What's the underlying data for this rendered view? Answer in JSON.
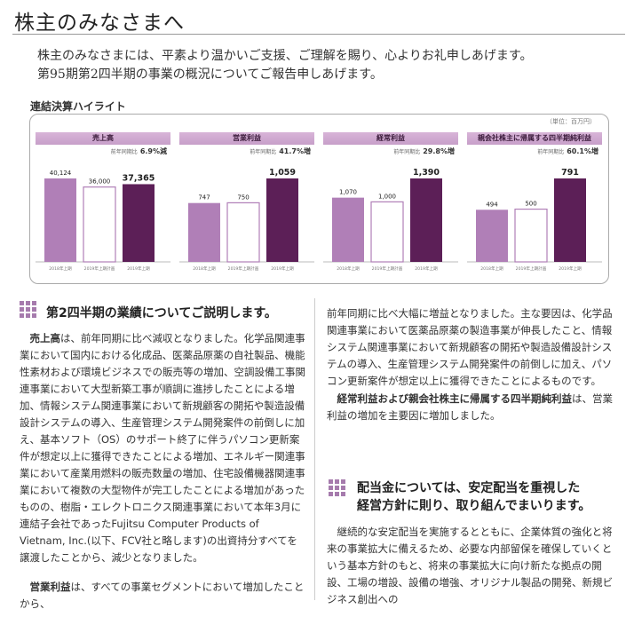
{
  "page_title": "株主のみなさまへ",
  "greeting": [
    "株主のみなさまには、平素より温かいご支援、ご理解を賜り、心よりお礼申しあげます。",
    "第95期第2四半期の事業の概況についてご報告申しあげます。"
  ],
  "highlight_label": "連結決算ハイライト",
  "unit_label": "（単位：百万円）",
  "chart_data": [
    {
      "type": "bar",
      "title": "売上高",
      "yoy_prefix": "前年同期比",
      "yoy": "6.9%減",
      "categories": [
        "2018年上期",
        "2019年上期計画",
        "2019年上期"
      ],
      "values": [
        40124,
        36000,
        37365
      ],
      "value_labels": [
        "40,124",
        "36,000",
        "37,365"
      ],
      "styles": [
        "fill",
        "outline",
        "dark"
      ]
    },
    {
      "type": "bar",
      "title": "営業利益",
      "yoy_prefix": "前年同期比",
      "yoy": "41.7%増",
      "categories": [
        "2018年上期",
        "2019年上期計画",
        "2019年上期"
      ],
      "values": [
        747,
        750,
        1059
      ],
      "value_labels": [
        "747",
        "750",
        "1,059"
      ],
      "styles": [
        "fill",
        "outline",
        "dark"
      ]
    },
    {
      "type": "bar",
      "title": "経常利益",
      "yoy_prefix": "前年同期比",
      "yoy": "29.8%増",
      "categories": [
        "2018年上期",
        "2019年上期計画",
        "2019年上期"
      ],
      "values": [
        1070,
        1000,
        1390
      ],
      "value_labels": [
        "1,070",
        "1,000",
        "1,390"
      ],
      "styles": [
        "fill",
        "outline",
        "dark"
      ]
    },
    {
      "type": "bar",
      "title": "親会社株主に帰属する四半期純利益",
      "yoy_prefix": "前年同期比",
      "yoy": "60.1%増",
      "categories": [
        "2018年上期",
        "2019年上期計画",
        "2019年上期"
      ],
      "values": [
        494,
        500,
        791
      ],
      "value_labels": [
        "494",
        "500",
        "791"
      ],
      "styles": [
        "fill",
        "outline",
        "dark"
      ]
    }
  ],
  "colors": {
    "bar_fill": "#b07fb7",
    "bar_dark": "#5c1f57",
    "bar_outline": "#b07fb7",
    "header_bg": "#d3aed5",
    "icon": "#a67bad"
  },
  "section1": {
    "heading": "第2四半期の業績についてご説明します。",
    "paragraphs": [
      {
        "lead": "売上高",
        "text": "は、前年同期に比べ減収となりました。化学品関連事業において国内における化成品、医薬品原薬の自社製品、機能性素材および環境ビジネスでの販売等の増加、空調設備工事関連事業において大型新築工事が順調に進捗したことによる増加、情報システム関連事業において新規顧客の開拓や製造設備設計システムの導入、生産管理システム開発案件の前倒しに加え、基本ソフト（OS）のサポート終了に伴うパソコン更新案件が想定以上に獲得できたことによる増加、エネルギー関連事業において産業用燃料の販売数量の増加、住宅設備機器関連事業において複数の大型物件が完工したことによる増加があったものの、樹脂・エレクトロニクス関連事業において本年3月に連結子会社であったFujitsu Computer Products of Vietnam, Inc.(以下、FCV社と略します)の出資持分すべてを譲渡したことから、減少となりました。"
      },
      {
        "lead": "営業利益",
        "text": "は、すべての事業セグメントにおいて増加したことから、前年同期に比べ大幅に増益となりました。主な要因は、化学品関連事業において医薬品原薬の製造事業が伸長したこと、情報システム関連事業において新規顧客の開拓や製造設備設計システムの導入、生産管理システム開発案件の前倒しに加え、パソコン更新案件が想定以上に獲得できたことによるものです。"
      },
      {
        "lead": "経常利益および親会社株主に帰属する四半期純利益",
        "text": "は、営業利益の増加を主要因に増加しました。"
      }
    ]
  },
  "section2": {
    "heading_line1": "配当金については、安定配当を重視した",
    "heading_line2": "経営方針に則り、取り組んでまいります。",
    "text": "継続的な安定配当を実施するとともに、企業体質の強化と将来の事業拡大に備えるため、必要な内部留保を確保していくという基本方針のもと、将来の事業拡大に向け新たな拠点の開設、工場の増設、設備の増強、オリジナル製品の開発、新規ビジネス創出への"
  }
}
